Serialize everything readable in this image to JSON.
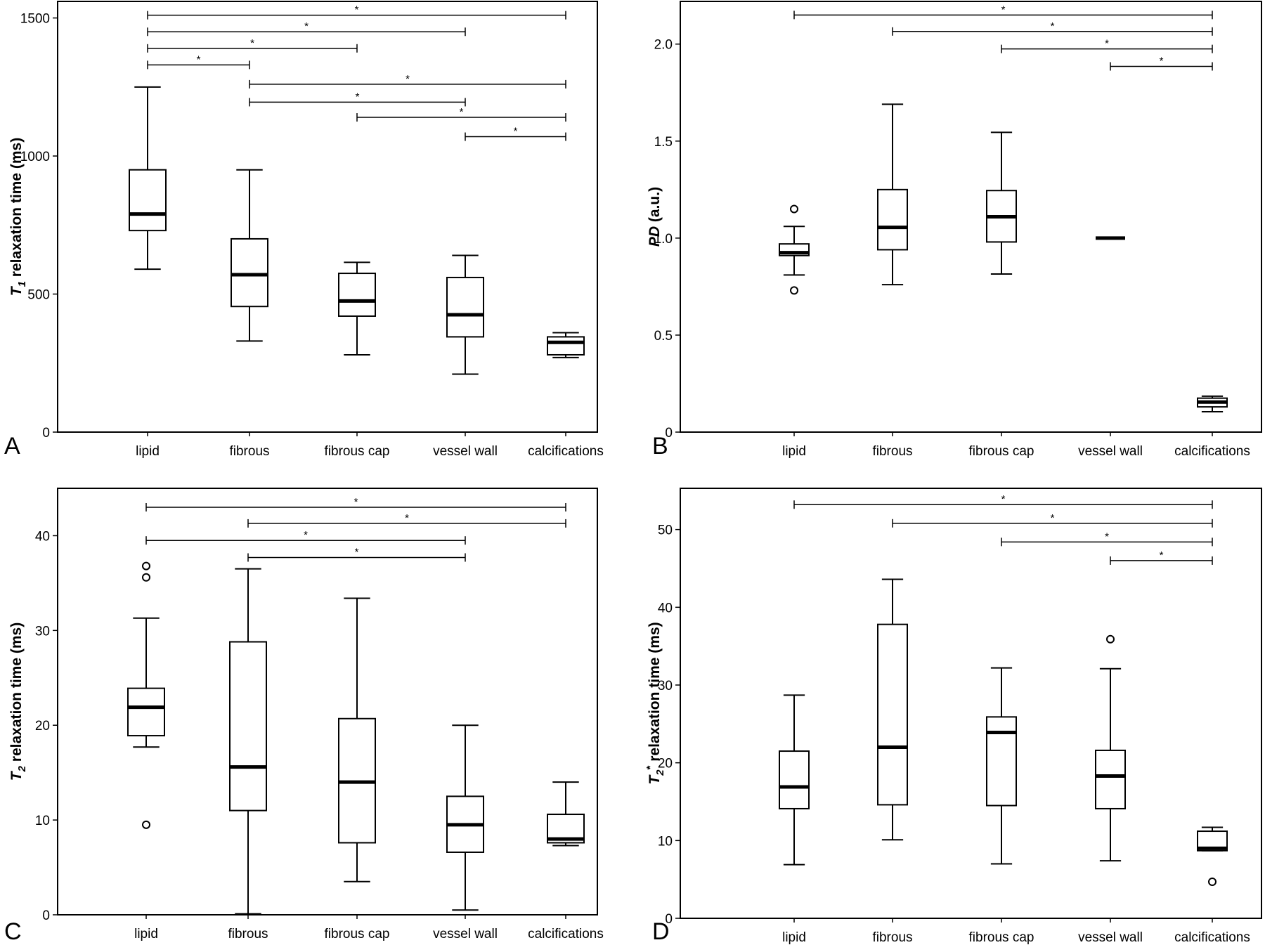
{
  "chart_data": [
    {
      "panel": "A",
      "type": "box",
      "ylabel": {
        "main": "T",
        "sub": "1",
        "rest": " relaxation time (ms)"
      },
      "ylim": [
        0,
        1560
      ],
      "yticks": [
        0,
        500,
        1000,
        1500
      ],
      "categories": [
        "lipid",
        "fibrous",
        "fibrous cap",
        "vessel wall",
        "calcifications"
      ],
      "boxes": [
        {
          "min": 590,
          "q1": 730,
          "median": 790,
          "q3": 950,
          "max": 1250,
          "outliers": []
        },
        {
          "min": 330,
          "q1": 455,
          "median": 570,
          "q3": 700,
          "max": 950,
          "outliers": []
        },
        {
          "min": 280,
          "q1": 420,
          "median": 475,
          "q3": 575,
          "max": 615,
          "outliers": []
        },
        {
          "min": 210,
          "q1": 345,
          "median": 425,
          "q3": 560,
          "max": 640,
          "outliers": []
        },
        {
          "min": 270,
          "q1": 280,
          "median": 325,
          "q3": 345,
          "max": 360,
          "outliers": []
        }
      ],
      "significance": [
        {
          "from": 0,
          "to": 4,
          "y": 1510,
          "label": "*"
        },
        {
          "from": 0,
          "to": 3,
          "y": 1450,
          "label": "*"
        },
        {
          "from": 0,
          "to": 2,
          "y": 1390,
          "label": "*"
        },
        {
          "from": 0,
          "to": 1,
          "y": 1330,
          "label": "*"
        },
        {
          "from": 1,
          "to": 4,
          "y": 1260,
          "label": "*"
        },
        {
          "from": 1,
          "to": 3,
          "y": 1195,
          "label": "*"
        },
        {
          "from": 2,
          "to": 4,
          "y": 1140,
          "label": "*"
        },
        {
          "from": 3,
          "to": 4,
          "y": 1070,
          "label": "*"
        }
      ]
    },
    {
      "panel": "B",
      "type": "box",
      "ylabel": {
        "main": "PD",
        "sub": "",
        "rest": " (a.u.)"
      },
      "ylim": [
        0,
        2.22
      ],
      "yticks": [
        "0",
        "0.5",
        "1.0",
        "1.5",
        "2.0"
      ],
      "categories": [
        "lipid",
        "fibrous",
        "fibrous cap",
        "vessel wall",
        "calcifications"
      ],
      "boxes": [
        {
          "min": 0.81,
          "q1": 0.91,
          "median": 0.925,
          "q3": 0.97,
          "max": 1.06,
          "outliers": [
            1.15,
            0.73
          ]
        },
        {
          "min": 0.76,
          "q1": 0.94,
          "median": 1.055,
          "q3": 1.25,
          "max": 1.69,
          "outliers": []
        },
        {
          "min": 0.815,
          "q1": 0.98,
          "median": 1.11,
          "q3": 1.245,
          "max": 1.545,
          "outliers": []
        },
        {
          "min": 1.0,
          "q1": 1.0,
          "median": 1.0,
          "q3": 1.0,
          "max": 1.0,
          "outliers": []
        },
        {
          "min": 0.105,
          "q1": 0.13,
          "median": 0.155,
          "q3": 0.175,
          "max": 0.185,
          "outliers": []
        }
      ],
      "significance": [
        {
          "from": 0,
          "to": 4,
          "y": 2.15,
          "label": "*"
        },
        {
          "from": 1,
          "to": 4,
          "y": 2.065,
          "label": "*"
        },
        {
          "from": 2,
          "to": 4,
          "y": 1.975,
          "label": "*"
        },
        {
          "from": 3,
          "to": 4,
          "y": 1.885,
          "label": "*"
        }
      ]
    },
    {
      "panel": "C",
      "type": "box",
      "ylabel": {
        "main": "T",
        "sub": "2",
        "rest": " relaxation time (ms)"
      },
      "ylim": [
        0,
        45
      ],
      "yticks": [
        0,
        10,
        20,
        30,
        40
      ],
      "categories": [
        "lipid",
        "fibrous",
        "fibrous cap",
        "vessel wall",
        "calcifications"
      ],
      "boxes": [
        {
          "min": 17.7,
          "q1": 18.9,
          "median": 21.9,
          "q3": 23.9,
          "max": 31.3,
          "outliers": [
            36.8,
            35.6,
            9.5
          ]
        },
        {
          "min": 0.1,
          "q1": 11.0,
          "median": 15.6,
          "q3": 28.8,
          "max": 36.5,
          "outliers": []
        },
        {
          "min": 3.5,
          "q1": 7.6,
          "median": 14.0,
          "q3": 20.7,
          "max": 33.4,
          "outliers": []
        },
        {
          "min": 0.5,
          "q1": 6.6,
          "median": 9.5,
          "q3": 12.5,
          "max": 20.0,
          "outliers": []
        },
        {
          "min": 7.3,
          "q1": 7.6,
          "median": 8.0,
          "q3": 10.6,
          "max": 14.0,
          "outliers": []
        }
      ],
      "significance": [
        {
          "from": 0,
          "to": 4,
          "y": 43.0,
          "label": "*"
        },
        {
          "from": 1,
          "to": 4,
          "y": 41.3,
          "label": "*"
        },
        {
          "from": 0,
          "to": 3,
          "y": 39.5,
          "label": "*"
        },
        {
          "from": 1,
          "to": 3,
          "y": 37.7,
          "label": "*"
        }
      ]
    },
    {
      "panel": "D",
      "type": "box",
      "ylabel": {
        "main": "T",
        "sub": "2",
        "sup": "*",
        "rest": " relaxation time (ms)"
      },
      "ylim": [
        0,
        55.3
      ],
      "yticks": [
        0,
        10,
        20,
        30,
        40,
        50
      ],
      "categories": [
        "lipid",
        "fibrous",
        "fibrous cap",
        "vessel wall",
        "calcifications"
      ],
      "boxes": [
        {
          "min": 6.9,
          "q1": 14.1,
          "median": 16.9,
          "q3": 21.5,
          "max": 28.7,
          "outliers": []
        },
        {
          "min": 10.1,
          "q1": 14.6,
          "median": 22.0,
          "q3": 37.8,
          "max": 43.6,
          "outliers": []
        },
        {
          "min": 7.0,
          "q1": 14.5,
          "median": 23.9,
          "q3": 25.9,
          "max": 32.2,
          "outliers": []
        },
        {
          "min": 7.4,
          "q1": 14.1,
          "median": 18.3,
          "q3": 21.6,
          "max": 32.1,
          "outliers": [
            35.9
          ]
        },
        {
          "min": 8.7,
          "q1": 8.7,
          "median": 9.0,
          "q3": 11.2,
          "max": 11.7,
          "outliers": [
            4.7
          ]
        }
      ],
      "significance": [
        {
          "from": 0,
          "to": 4,
          "y": 53.2,
          "label": "*"
        },
        {
          "from": 1,
          "to": 4,
          "y": 50.8,
          "label": "*"
        },
        {
          "from": 2,
          "to": 4,
          "y": 48.4,
          "label": "*"
        },
        {
          "from": 3,
          "to": 4,
          "y": 46.0,
          "label": "*"
        }
      ]
    }
  ]
}
